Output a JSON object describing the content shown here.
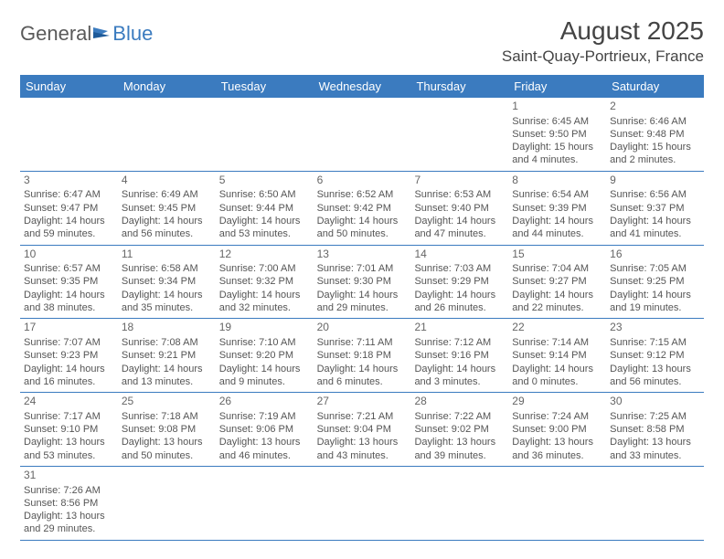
{
  "logo": {
    "part1": "General",
    "part2": "Blue"
  },
  "title": {
    "month": "August 2025",
    "location": "Saint-Quay-Portrieux, France"
  },
  "colors": {
    "header_bg": "#3b7bbf",
    "header_text": "#ffffff",
    "text": "#555555",
    "rule": "#3b7bbf"
  },
  "days_of_week": [
    "Sunday",
    "Monday",
    "Tuesday",
    "Wednesday",
    "Thursday",
    "Friday",
    "Saturday"
  ],
  "weeks": [
    [
      null,
      null,
      null,
      null,
      null,
      {
        "n": "1",
        "sr": "6:45 AM",
        "ss": "9:50 PM",
        "dl": "15 hours and 4 minutes."
      },
      {
        "n": "2",
        "sr": "6:46 AM",
        "ss": "9:48 PM",
        "dl": "15 hours and 2 minutes."
      }
    ],
    [
      {
        "n": "3",
        "sr": "6:47 AM",
        "ss": "9:47 PM",
        "dl": "14 hours and 59 minutes."
      },
      {
        "n": "4",
        "sr": "6:49 AM",
        "ss": "9:45 PM",
        "dl": "14 hours and 56 minutes."
      },
      {
        "n": "5",
        "sr": "6:50 AM",
        "ss": "9:44 PM",
        "dl": "14 hours and 53 minutes."
      },
      {
        "n": "6",
        "sr": "6:52 AM",
        "ss": "9:42 PM",
        "dl": "14 hours and 50 minutes."
      },
      {
        "n": "7",
        "sr": "6:53 AM",
        "ss": "9:40 PM",
        "dl": "14 hours and 47 minutes."
      },
      {
        "n": "8",
        "sr": "6:54 AM",
        "ss": "9:39 PM",
        "dl": "14 hours and 44 minutes."
      },
      {
        "n": "9",
        "sr": "6:56 AM",
        "ss": "9:37 PM",
        "dl": "14 hours and 41 minutes."
      }
    ],
    [
      {
        "n": "10",
        "sr": "6:57 AM",
        "ss": "9:35 PM",
        "dl": "14 hours and 38 minutes."
      },
      {
        "n": "11",
        "sr": "6:58 AM",
        "ss": "9:34 PM",
        "dl": "14 hours and 35 minutes."
      },
      {
        "n": "12",
        "sr": "7:00 AM",
        "ss": "9:32 PM",
        "dl": "14 hours and 32 minutes."
      },
      {
        "n": "13",
        "sr": "7:01 AM",
        "ss": "9:30 PM",
        "dl": "14 hours and 29 minutes."
      },
      {
        "n": "14",
        "sr": "7:03 AM",
        "ss": "9:29 PM",
        "dl": "14 hours and 26 minutes."
      },
      {
        "n": "15",
        "sr": "7:04 AM",
        "ss": "9:27 PM",
        "dl": "14 hours and 22 minutes."
      },
      {
        "n": "16",
        "sr": "7:05 AM",
        "ss": "9:25 PM",
        "dl": "14 hours and 19 minutes."
      }
    ],
    [
      {
        "n": "17",
        "sr": "7:07 AM",
        "ss": "9:23 PM",
        "dl": "14 hours and 16 minutes."
      },
      {
        "n": "18",
        "sr": "7:08 AM",
        "ss": "9:21 PM",
        "dl": "14 hours and 13 minutes."
      },
      {
        "n": "19",
        "sr": "7:10 AM",
        "ss": "9:20 PM",
        "dl": "14 hours and 9 minutes."
      },
      {
        "n": "20",
        "sr": "7:11 AM",
        "ss": "9:18 PM",
        "dl": "14 hours and 6 minutes."
      },
      {
        "n": "21",
        "sr": "7:12 AM",
        "ss": "9:16 PM",
        "dl": "14 hours and 3 minutes."
      },
      {
        "n": "22",
        "sr": "7:14 AM",
        "ss": "9:14 PM",
        "dl": "14 hours and 0 minutes."
      },
      {
        "n": "23",
        "sr": "7:15 AM",
        "ss": "9:12 PM",
        "dl": "13 hours and 56 minutes."
      }
    ],
    [
      {
        "n": "24",
        "sr": "7:17 AM",
        "ss": "9:10 PM",
        "dl": "13 hours and 53 minutes."
      },
      {
        "n": "25",
        "sr": "7:18 AM",
        "ss": "9:08 PM",
        "dl": "13 hours and 50 minutes."
      },
      {
        "n": "26",
        "sr": "7:19 AM",
        "ss": "9:06 PM",
        "dl": "13 hours and 46 minutes."
      },
      {
        "n": "27",
        "sr": "7:21 AM",
        "ss": "9:04 PM",
        "dl": "13 hours and 43 minutes."
      },
      {
        "n": "28",
        "sr": "7:22 AM",
        "ss": "9:02 PM",
        "dl": "13 hours and 39 minutes."
      },
      {
        "n": "29",
        "sr": "7:24 AM",
        "ss": "9:00 PM",
        "dl": "13 hours and 36 minutes."
      },
      {
        "n": "30",
        "sr": "7:25 AM",
        "ss": "8:58 PM",
        "dl": "13 hours and 33 minutes."
      }
    ],
    [
      {
        "n": "31",
        "sr": "7:26 AM",
        "ss": "8:56 PM",
        "dl": "13 hours and 29 minutes."
      },
      null,
      null,
      null,
      null,
      null,
      null
    ]
  ],
  "labels": {
    "sunrise": "Sunrise: ",
    "sunset": "Sunset: ",
    "daylight": "Daylight: "
  }
}
